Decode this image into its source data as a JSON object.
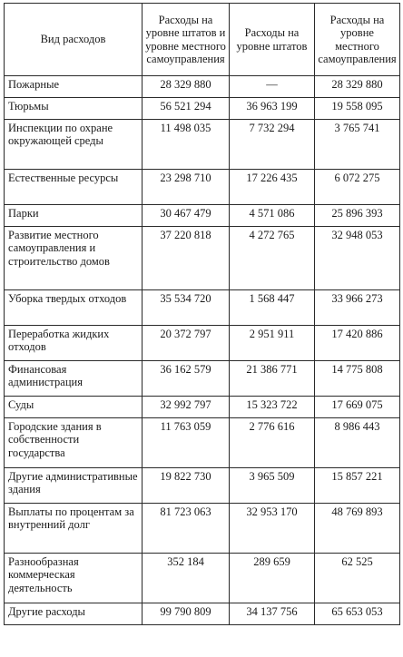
{
  "headers": [
    "Вид расходов",
    "Расходы на уровне штатов и уровне местного самоуправления",
    "Расходы на уровне штатов",
    "Расходы на уровне местного самоуправления"
  ],
  "rows": [
    {
      "label": "Пожарные",
      "total": "28 329 880",
      "state": "—",
      "local": "28 329 880"
    },
    {
      "label": "Тюрьмы",
      "total": "56 521 294",
      "state": "36 963 199",
      "local": "19 558 095"
    },
    {
      "label": "Инспекции по охране окружающей среды",
      "total": "11 498 035",
      "state": "7 732 294",
      "local": "3 765 741"
    },
    {
      "label": "Естественные ресурсы",
      "total": "23 298 710",
      "state": "17 226 435",
      "local": "6 072 275"
    },
    {
      "label": "Парки",
      "total": "30 467 479",
      "state": "4 571 086",
      "local": "25 896 393"
    },
    {
      "label": "Развитие местного самоуправления и строительство домов",
      "total": "37 220 818",
      "state": "4 272 765",
      "local": "32 948 053"
    },
    {
      "label": "Уборка твердых отходов",
      "total": "35 534 720",
      "state": "1 568 447",
      "local": "33 966 273"
    },
    {
      "label": "Переработка жидких отходов",
      "total": "20 372 797",
      "state": "2 951 911",
      "local": "17 420 886"
    },
    {
      "label": "Финансовая администрация",
      "total": "36 162 579",
      "state": "21 386 771",
      "local": "14 775 808"
    },
    {
      "label": "Суды",
      "total": "32 992 797",
      "state": "15 323 722",
      "local": "17 669 075"
    },
    {
      "label": "Городские здания в собственности государства",
      "total": "11 763 059",
      "state": "2 776 616",
      "local": "8 986 443"
    },
    {
      "label": "Другие административные здания",
      "total": "19 822 730",
      "state": "3 965 509",
      "local": "15 857 221"
    },
    {
      "label": "Выплаты по процентам за внутренний долг",
      "total": "81 723 063",
      "state": "32 953 170",
      "local": "48 769 893"
    },
    {
      "label": "Разнообразная коммерческая деятельность",
      "total": "352 184",
      "state": "289 659",
      "local": "62 525"
    },
    {
      "label": "Другие расходы",
      "total": "99 790 809",
      "state": "34 137 756",
      "local": "65 653 053"
    }
  ]
}
